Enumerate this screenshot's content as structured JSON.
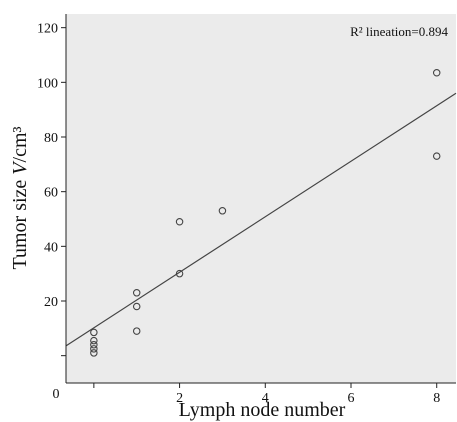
{
  "chart_data": {
    "type": "scatter",
    "xlabel": "Lymph node number",
    "ylabel_main": "Tumor size ",
    "ylabel_italic": "V",
    "ylabel_unit": "/cm³",
    "xlim": [
      -0.65,
      8.45
    ],
    "ylim": [
      -10,
      125
    ],
    "x_ticks": [
      0,
      2,
      4,
      6,
      8
    ],
    "x_tick_labels": [
      "0",
      "2",
      "4",
      "6",
      "8"
    ],
    "y_ticks": [
      0,
      20,
      40,
      60,
      80,
      100,
      120
    ],
    "y_tick_labels": [
      "",
      "20",
      "40",
      "60",
      "80",
      "100",
      "120"
    ],
    "origin_label": "0",
    "grid": false,
    "background": "#ebebeb",
    "marker_color": "#444444",
    "line_color": "#444444",
    "series": [
      {
        "points": [
          {
            "x": 0,
            "y": 1
          },
          {
            "x": 0,
            "y": 2.5
          },
          {
            "x": 0,
            "y": 4
          },
          {
            "x": 0,
            "y": 5.5
          },
          {
            "x": 0,
            "y": 8.5
          },
          {
            "x": 1,
            "y": 9
          },
          {
            "x": 1,
            "y": 18
          },
          {
            "x": 1,
            "y": 23
          },
          {
            "x": 2,
            "y": 30
          },
          {
            "x": 2,
            "y": 49
          },
          {
            "x": 3,
            "y": 53
          },
          {
            "x": 8,
            "y": 73
          },
          {
            "x": 8,
            "y": 103.5
          }
        ]
      }
    ],
    "fit_line": {
      "x": [
        -0.65,
        8.45
      ],
      "y": [
        3.6,
        96
      ]
    },
    "annotation": "R² lineation=0.894"
  }
}
